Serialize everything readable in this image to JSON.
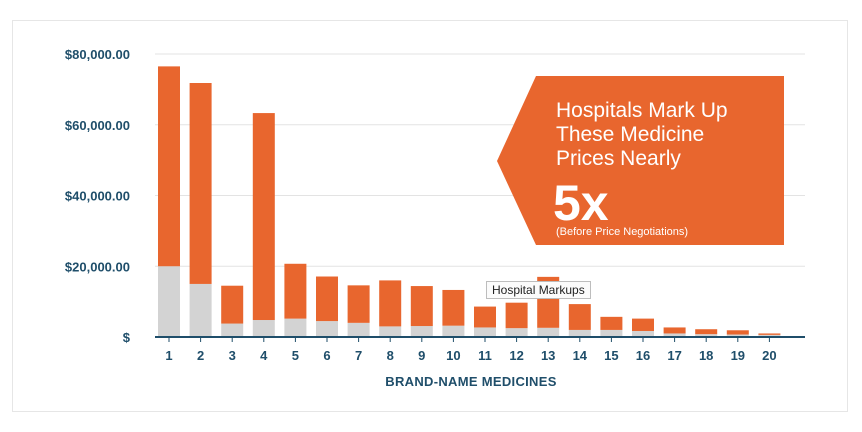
{
  "chart_data": {
    "type": "bar",
    "stacked": true,
    "categories": [
      "1",
      "2",
      "3",
      "4",
      "5",
      "6",
      "7",
      "8",
      "9",
      "10",
      "11",
      "12",
      "13",
      "14",
      "15",
      "16",
      "17",
      "18",
      "19",
      "20"
    ],
    "series": [
      {
        "color": "#d3d3d3",
        "values": [
          20000,
          15000,
          3800,
          4800,
          5200,
          4500,
          4000,
          3000,
          3100,
          3200,
          2700,
          2500,
          2600,
          2000,
          2000,
          1700,
          1000,
          800,
          700,
          600
        ]
      },
      {
        "name": "Hospital Markups",
        "color": "#e8662e",
        "values": [
          56500,
          56800,
          10700,
          58500,
          15500,
          12600,
          10600,
          13000,
          11300,
          10100,
          5900,
          7200,
          14400,
          7300,
          3700,
          3500,
          1700,
          1400,
          1200,
          400
        ]
      }
    ],
    "yticks": [
      "$80,000.00",
      "$60,000.00",
      "$40,000.00",
      "$20,000.00",
      "$"
    ],
    "ylim": [
      0,
      80000
    ],
    "xlabel": "BRAND-NAME MEDICINES",
    "grid": true
  },
  "callout": {
    "lines": [
      "Hospitals Mark Up",
      "These Medicine",
      "Prices Nearly"
    ],
    "big": "5x",
    "note": "(Before Price Negotiations)",
    "color": "#e8662e"
  },
  "tooltip": "Hospital Markups"
}
